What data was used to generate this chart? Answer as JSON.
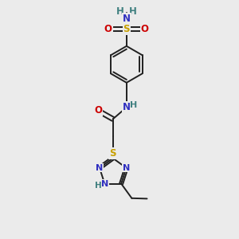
{
  "bg_color": "#ebebeb",
  "atom_colors": {
    "C": "#202020",
    "N": "#3030c0",
    "O": "#cc0000",
    "S": "#c8a000",
    "H": "#408080"
  },
  "bond_color": "#202020",
  "lw": 1.4,
  "fs": 8.5,
  "fig_w": 3.0,
  "fig_h": 3.0,
  "dpi": 100,
  "xlim": [
    0,
    10
  ],
  "ylim": [
    0,
    10
  ]
}
